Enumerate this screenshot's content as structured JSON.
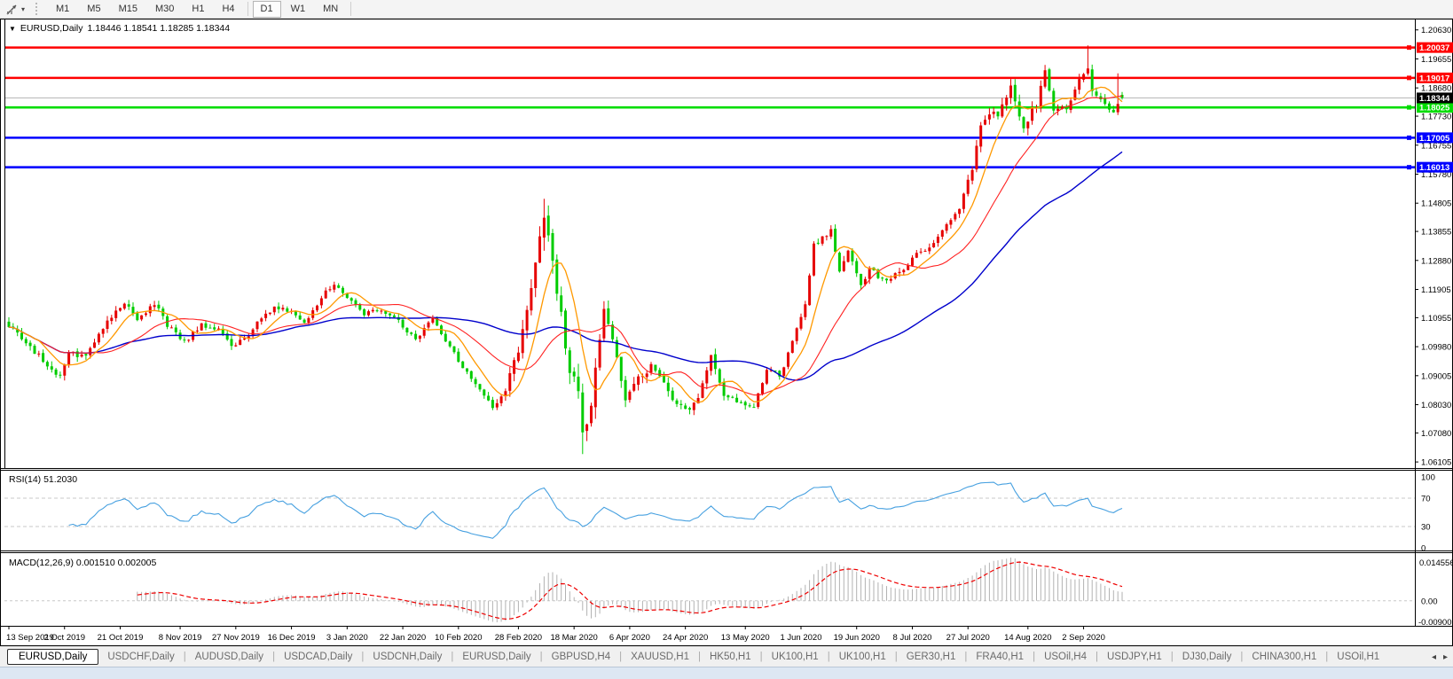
{
  "toolbar": {
    "cursor_tool": "crosshair-cursor-tool",
    "timeframes": [
      "M1",
      "M5",
      "M15",
      "M30",
      "H1",
      "H4",
      "D1",
      "W1",
      "MN"
    ],
    "selected_timeframe": "D1",
    "separators_after": [
      "H4",
      "MN"
    ]
  },
  "window": {
    "title_symbol": "EURUSD,Daily",
    "title_ohlc": "1.18446 1.18541 1.18285 1.18344",
    "dropdown_glyph": "▼"
  },
  "chart_data": {
    "type": "candlestick",
    "symbol": "EURUSD",
    "timeframe": "Daily",
    "colors": {
      "up_candle": "#e60000",
      "down_candle": "#00cc00",
      "ma_fast": "#ff9900",
      "ma_mid": "#ff2222",
      "ma_slow": "#0000cc",
      "rsi_line": "#46a0e0",
      "macd_hist": "#b2b2b2",
      "macd_signal": "#ee0000",
      "current_price_line": "#b8b8b8",
      "grid_dash": "#c8c8c8"
    },
    "price_axis_range": [
      1.0596,
      1.2095
    ],
    "price_axis_ticks": [
      "1.20630",
      "1.19655",
      "1.18680",
      "1.17730",
      "1.16755",
      "1.15780",
      "1.14805",
      "1.13855",
      "1.12880",
      "1.11905",
      "1.10955",
      "1.09980",
      "1.09005",
      "1.08030",
      "1.07080",
      "1.06105"
    ],
    "current_price": {
      "value": 1.18344,
      "label": "1.18344",
      "label_bg": "#000000",
      "label_fg": "#ffffff"
    },
    "horizontal_lines": [
      {
        "price": 1.20037,
        "label": "1.20037",
        "color": "#ff0000",
        "label_fg": "#ffffff"
      },
      {
        "price": 1.19017,
        "label": "1.19017",
        "color": "#ff0000",
        "label_fg": "#ffffff"
      },
      {
        "price": 1.18025,
        "label": "1.18025",
        "color": "#00dd00",
        "label_fg": "#ffffff"
      },
      {
        "price": 1.17005,
        "label": "1.17005",
        "color": "#0000ff",
        "label_fg": "#ffffff"
      },
      {
        "price": 1.16013,
        "label": "1.16013",
        "color": "#0000ff",
        "label_fg": "#ffffff"
      }
    ],
    "moving_averages": [
      {
        "period": 8,
        "color": "#ff9900",
        "width": 1.3
      },
      {
        "period": 21,
        "color": "#ff2222",
        "width": 1.1
      },
      {
        "period": 55,
        "color": "#0000cc",
        "width": 1.4
      }
    ],
    "date_axis": [
      [
        "13 Sep 2019",
        0
      ],
      [
        "2 Oct 2019",
        13
      ],
      [
        "21 Oct 2019",
        26
      ],
      [
        "8 Nov 2019",
        40
      ],
      [
        "27 Nov 2019",
        53
      ],
      [
        "16 Dec 2019",
        66
      ],
      [
        "3 Jan 2020",
        79
      ],
      [
        "22 Jan 2020",
        92
      ],
      [
        "10 Feb 2020",
        105
      ],
      [
        "28 Feb 2020",
        119
      ],
      [
        "18 Mar 2020",
        132
      ],
      [
        "6 Apr 2020",
        145
      ],
      [
        "24 Apr 2020",
        158
      ],
      [
        "13 May 2020",
        172
      ],
      [
        "1 Jun 2020",
        185
      ],
      [
        "19 Jun 2020",
        198
      ],
      [
        "8 Jul 2020",
        211
      ],
      [
        "27 Jul 2020",
        224
      ],
      [
        "14 Aug 2020",
        238
      ],
      [
        "2 Sep 2020",
        251
      ]
    ],
    "candles": {
      "count": 261,
      "seed": 9,
      "anchors": [
        [
          0,
          1.107,
          0.0035
        ],
        [
          4,
          1.1005,
          0.0035
        ],
        [
          8,
          1.0955,
          0.0035
        ],
        [
          12,
          1.0895,
          0.0035
        ],
        [
          14,
          1.0975,
          0.0035
        ],
        [
          18,
          1.0965,
          0.003
        ],
        [
          21,
          1.104,
          0.003
        ],
        [
          25,
          1.1125,
          0.0035
        ],
        [
          27,
          1.115,
          0.0035
        ],
        [
          30,
          1.108,
          0.003
        ],
        [
          34,
          1.1145,
          0.003
        ],
        [
          37,
          1.107,
          0.003
        ],
        [
          41,
          1.1015,
          0.003
        ],
        [
          45,
          1.107,
          0.0028
        ],
        [
          49,
          1.1055,
          0.0028
        ],
        [
          52,
          1.1005,
          0.0028
        ],
        [
          55,
          1.102,
          0.0028
        ],
        [
          58,
          1.108,
          0.0028
        ],
        [
          62,
          1.113,
          0.0028
        ],
        [
          66,
          1.1115,
          0.0025
        ],
        [
          69,
          1.108,
          0.0025
        ],
        [
          74,
          1.118,
          0.0025
        ],
        [
          76,
          1.121,
          0.0025
        ],
        [
          79,
          1.1165,
          0.0025
        ],
        [
          83,
          1.111,
          0.0025
        ],
        [
          87,
          1.112,
          0.0025
        ],
        [
          91,
          1.1085,
          0.0025
        ],
        [
          95,
          1.102,
          0.0025
        ],
        [
          99,
          1.109,
          0.0025
        ],
        [
          103,
          1.0995,
          0.0025
        ],
        [
          107,
          1.091,
          0.0025
        ],
        [
          111,
          1.084,
          0.0028
        ],
        [
          113,
          1.079,
          0.003
        ],
        [
          116,
          1.0855,
          0.004
        ],
        [
          119,
          1.099,
          0.006
        ],
        [
          121,
          1.1135,
          0.007
        ],
        [
          124,
          1.136,
          0.008
        ],
        [
          125,
          1.145,
          0.009
        ],
        [
          127,
          1.127,
          0.01
        ],
        [
          129,
          1.111,
          0.011
        ],
        [
          131,
          1.092,
          0.011
        ],
        [
          133,
          1.086,
          0.01
        ],
        [
          134,
          1.069,
          0.01
        ],
        [
          136,
          1.078,
          0.009
        ],
        [
          138,
          1.103,
          0.008
        ],
        [
          139,
          1.114,
          0.007
        ],
        [
          141,
          1.103,
          0.006
        ],
        [
          144,
          1.081,
          0.005
        ],
        [
          147,
          1.089,
          0.0045
        ],
        [
          150,
          1.093,
          0.004
        ],
        [
          152,
          1.091,
          0.004
        ],
        [
          154,
          1.0845,
          0.004
        ],
        [
          158,
          1.078,
          0.004
        ],
        [
          161,
          1.083,
          0.004
        ],
        [
          164,
          1.0965,
          0.004
        ],
        [
          167,
          1.084,
          0.0035
        ],
        [
          171,
          1.081,
          0.003
        ],
        [
          174,
          1.08,
          0.003
        ],
        [
          177,
          1.0925,
          0.003
        ],
        [
          180,
          1.09,
          0.003
        ],
        [
          183,
          1.101,
          0.003
        ],
        [
          186,
          1.1135,
          0.0035
        ],
        [
          188,
          1.134,
          0.004
        ],
        [
          192,
          1.1385,
          0.004
        ],
        [
          194,
          1.1255,
          0.004
        ],
        [
          196,
          1.132,
          0.0035
        ],
        [
          199,
          1.12,
          0.0035
        ],
        [
          201,
          1.126,
          0.0035
        ],
        [
          204,
          1.122,
          0.003
        ],
        [
          208,
          1.1245,
          0.003
        ],
        [
          212,
          1.131,
          0.003
        ],
        [
          216,
          1.1345,
          0.003
        ],
        [
          219,
          1.1405,
          0.003
        ],
        [
          222,
          1.1455,
          0.0035
        ],
        [
          225,
          1.16,
          0.004
        ],
        [
          227,
          1.175,
          0.0045
        ],
        [
          229,
          1.179,
          0.005
        ],
        [
          231,
          1.177,
          0.005
        ],
        [
          234,
          1.187,
          0.005
        ],
        [
          237,
          1.174,
          0.005
        ],
        [
          240,
          1.1815,
          0.0045
        ],
        [
          242,
          1.193,
          0.0045
        ],
        [
          244,
          1.18,
          0.0045
        ],
        [
          247,
          1.179,
          0.004
        ],
        [
          250,
          1.19,
          0.004
        ],
        [
          252,
          1.194,
          0.004
        ],
        [
          253,
          1.1855,
          0.004
        ],
        [
          256,
          1.182,
          0.0035
        ],
        [
          258,
          1.1785,
          0.0035
        ],
        [
          260,
          1.18344,
          0.003
        ]
      ],
      "wick_overrides": [
        [
          125,
          "high",
          1.1495
        ],
        [
          134,
          "low",
          1.0637
        ],
        [
          252,
          "high",
          1.2011
        ],
        [
          259,
          "high",
          1.1917
        ]
      ],
      "last_candle": {
        "open": 1.18446,
        "high": 1.18541,
        "low": 1.18285,
        "close": 1.18344
      }
    },
    "rsi": {
      "label": "RSI(14) 51.2030",
      "period": 14,
      "value": 51.203,
      "levels": [
        70,
        30
      ],
      "scale_ticks": [
        "100",
        "70",
        "30",
        "0"
      ],
      "scale_values": [
        100,
        70,
        30,
        0
      ]
    },
    "macd": {
      "label": "MACD(12,26,9) 0.001510 0.002005",
      "fast": 12,
      "slow": 26,
      "signal": 9,
      "macd_value": 0.00151,
      "signal_value": 0.002005,
      "scale_max": "0.014556",
      "scale_zero": "0.00",
      "scale_min": "-0.009001"
    }
  },
  "tabs": {
    "active_index": 0,
    "items": [
      "EURUSD,Daily",
      "USDCHF,Daily",
      "AUDUSD,Daily",
      "USDCAD,Daily",
      "USDCNH,Daily",
      "EURUSD,Daily",
      "GBPUSD,H4",
      "XAUUSD,H1",
      "HK50,H1",
      "UK100,H1",
      "UK100,H1",
      "GER30,H1",
      "FRA40,H1",
      "USOil,H4",
      "USDJPY,H1",
      "DJ30,Daily",
      "CHINA300,H1",
      "USOil,H1"
    ],
    "scroll_left_glyph": "◂",
    "scroll_right_glyph": "▸"
  }
}
